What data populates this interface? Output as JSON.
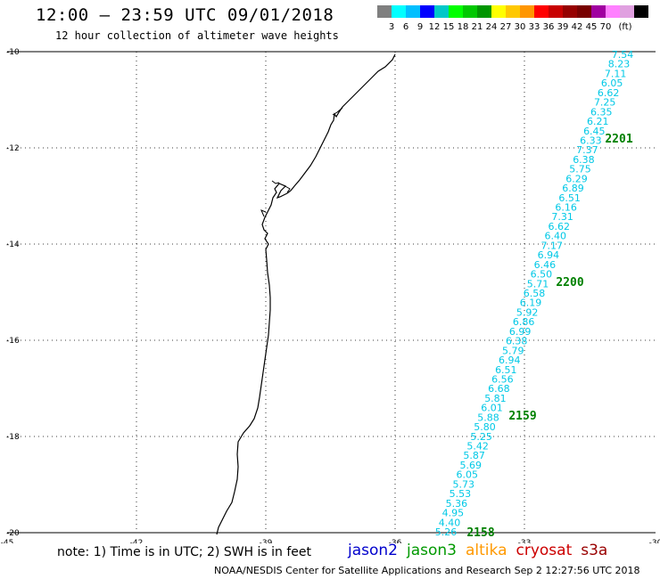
{
  "header": {
    "title": "12:00 – 23:59 UTC 09/01/2018",
    "subtitle": "12 hour collection of altimeter wave heights"
  },
  "legend": {
    "colors": [
      "#7f7f7f",
      "#00ffff",
      "#00bfff",
      "#0000ff",
      "#00c8c8",
      "#00ff00",
      "#00c800",
      "#009600",
      "#ffff00",
      "#ffc800",
      "#ff9600",
      "#ff0000",
      "#c80000",
      "#960000",
      "#780000",
      "#a000a0",
      "#ff80ff",
      "#e0a0e0",
      "#000000"
    ],
    "labels": [
      "3",
      "6",
      "9",
      "12",
      "15",
      "18",
      "21",
      "24",
      "27",
      "30",
      "33",
      "36",
      "39",
      "42",
      "45",
      "70",
      "(ft)"
    ]
  },
  "axes": {
    "lat_labels": [
      "-10",
      "-12",
      "-14",
      "-16",
      "-18",
      "-20"
    ],
    "lon_labels": [
      "-45",
      "-42",
      "-39",
      "-36",
      "-33",
      "-30"
    ]
  },
  "track": {
    "color": "#00c8e6",
    "values": [
      "7.54",
      "8.23",
      "7.11",
      "6.05",
      "6.62",
      "7.25",
      "6.35",
      "6.21",
      "6.45",
      "6.33",
      "7.37",
      "6.38",
      "5.75",
      "6.29",
      "6.89",
      "6.51",
      "6.16",
      "7.31",
      "6.62",
      "6.40",
      "7.17",
      "6.94",
      "6.46",
      "6.50",
      "5.71",
      "6.58",
      "6.19",
      "5.92",
      "6.86",
      "6.99",
      "6.38",
      "5.79",
      "6.94",
      "6.51",
      "6.56",
      "6.68",
      "5.81",
      "6.01",
      "5.88",
      "5.80",
      "5.25",
      "5.42",
      "5.87",
      "5.69",
      "6.05",
      "5.73",
      "5.53",
      "5.36",
      "4.95",
      "4.40",
      "5.26"
    ],
    "time_labels": [
      "2201",
      "2200",
      "2159",
      "2158"
    ]
  },
  "footer": {
    "note": "note: 1) Time is in UTC; 2) SWH is in feet",
    "satellites": [
      {
        "name": "jason2",
        "color": "#0000cc"
      },
      {
        "name": "jason3",
        "color": "#009900"
      },
      {
        "name": "altika",
        "color": "#ff9900"
      },
      {
        "name": "cryosat",
        "color": "#cc0000"
      },
      {
        "name": "s3a",
        "color": "#990000"
      }
    ],
    "credit": "NOAA/NESDIS Center for Satellite Applications and Research    Sep  2 12:27:56 UTC 2018"
  }
}
